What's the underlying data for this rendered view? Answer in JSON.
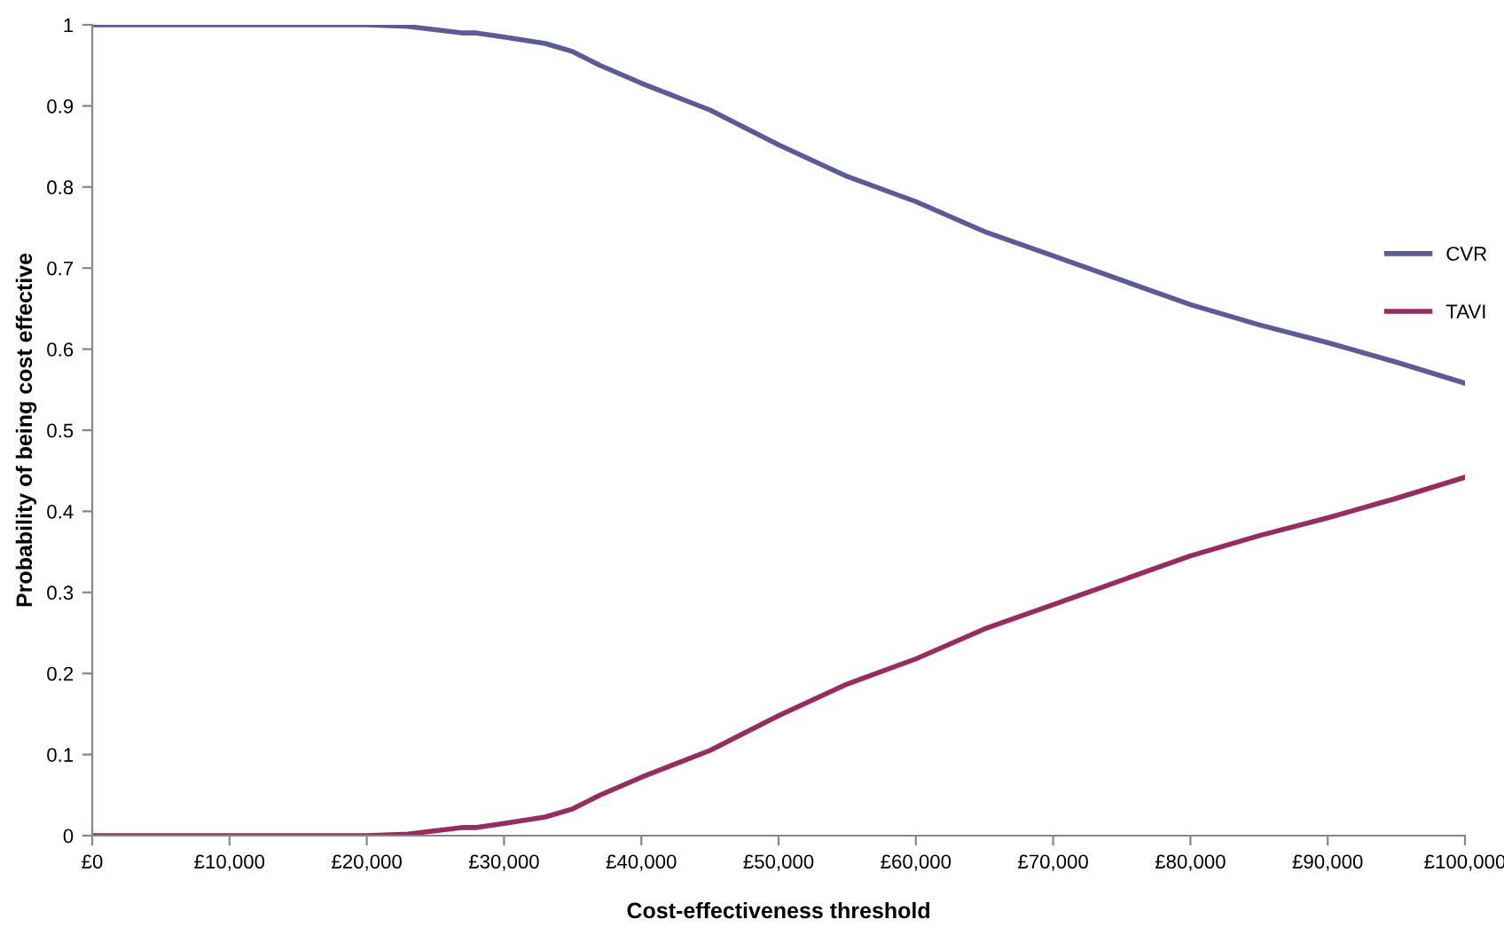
{
  "chart_data": {
    "type": "line",
    "xlabel": "Cost-effectiveness threshold",
    "ylabel": "Probability of being cost effective",
    "x": [
      0,
      5000,
      10000,
      15000,
      20000,
      23000,
      25000,
      27000,
      28000,
      30000,
      33000,
      35000,
      37000,
      40000,
      45000,
      50000,
      55000,
      60000,
      65000,
      70000,
      75000,
      80000,
      85000,
      90000,
      95000,
      100000
    ],
    "series": [
      {
        "name": "CVR",
        "color": "#5b5b9b",
        "values": [
          1,
          1,
          1,
          1,
          1,
          0.998,
          0.994,
          0.99,
          0.99,
          0.985,
          0.977,
          0.967,
          0.95,
          0.928,
          0.895,
          0.852,
          0.813,
          0.782,
          0.745,
          0.715,
          0.685,
          0.655,
          0.63,
          0.608,
          0.584,
          0.558
        ]
      },
      {
        "name": "TAVI",
        "color": "#9b2a5e",
        "values": [
          0,
          0,
          0,
          0,
          0,
          0.002,
          0.006,
          0.01,
          0.01,
          0.015,
          0.023,
          0.033,
          0.05,
          0.072,
          0.105,
          0.148,
          0.187,
          0.218,
          0.255,
          0.285,
          0.315,
          0.345,
          0.37,
          0.392,
          0.416,
          0.442
        ]
      }
    ],
    "xlim": [
      0,
      100000
    ],
    "xticks": [
      {
        "value": 0,
        "label": "£0"
      },
      {
        "value": 10000,
        "label": "£10,000"
      },
      {
        "value": 20000,
        "label": "£20,000"
      },
      {
        "value": 30000,
        "label": "£30,000"
      },
      {
        "value": 40000,
        "label": "£40,000"
      },
      {
        "value": 50000,
        "label": "£50,000"
      },
      {
        "value": 60000,
        "label": "£60,000"
      },
      {
        "value": 70000,
        "label": "£70,000"
      },
      {
        "value": 80000,
        "label": "£80,000"
      },
      {
        "value": 90000,
        "label": "£90,000"
      },
      {
        "value": 100000,
        "label": "£100,000"
      }
    ],
    "ylim": [
      0,
      1
    ],
    "yticks": [
      0,
      0.1,
      0.2,
      0.3,
      0.4,
      0.5,
      0.6,
      0.7,
      0.8,
      0.9,
      1
    ],
    "grid": false,
    "legend": "right",
    "marker": "none",
    "line_style": "solid"
  }
}
